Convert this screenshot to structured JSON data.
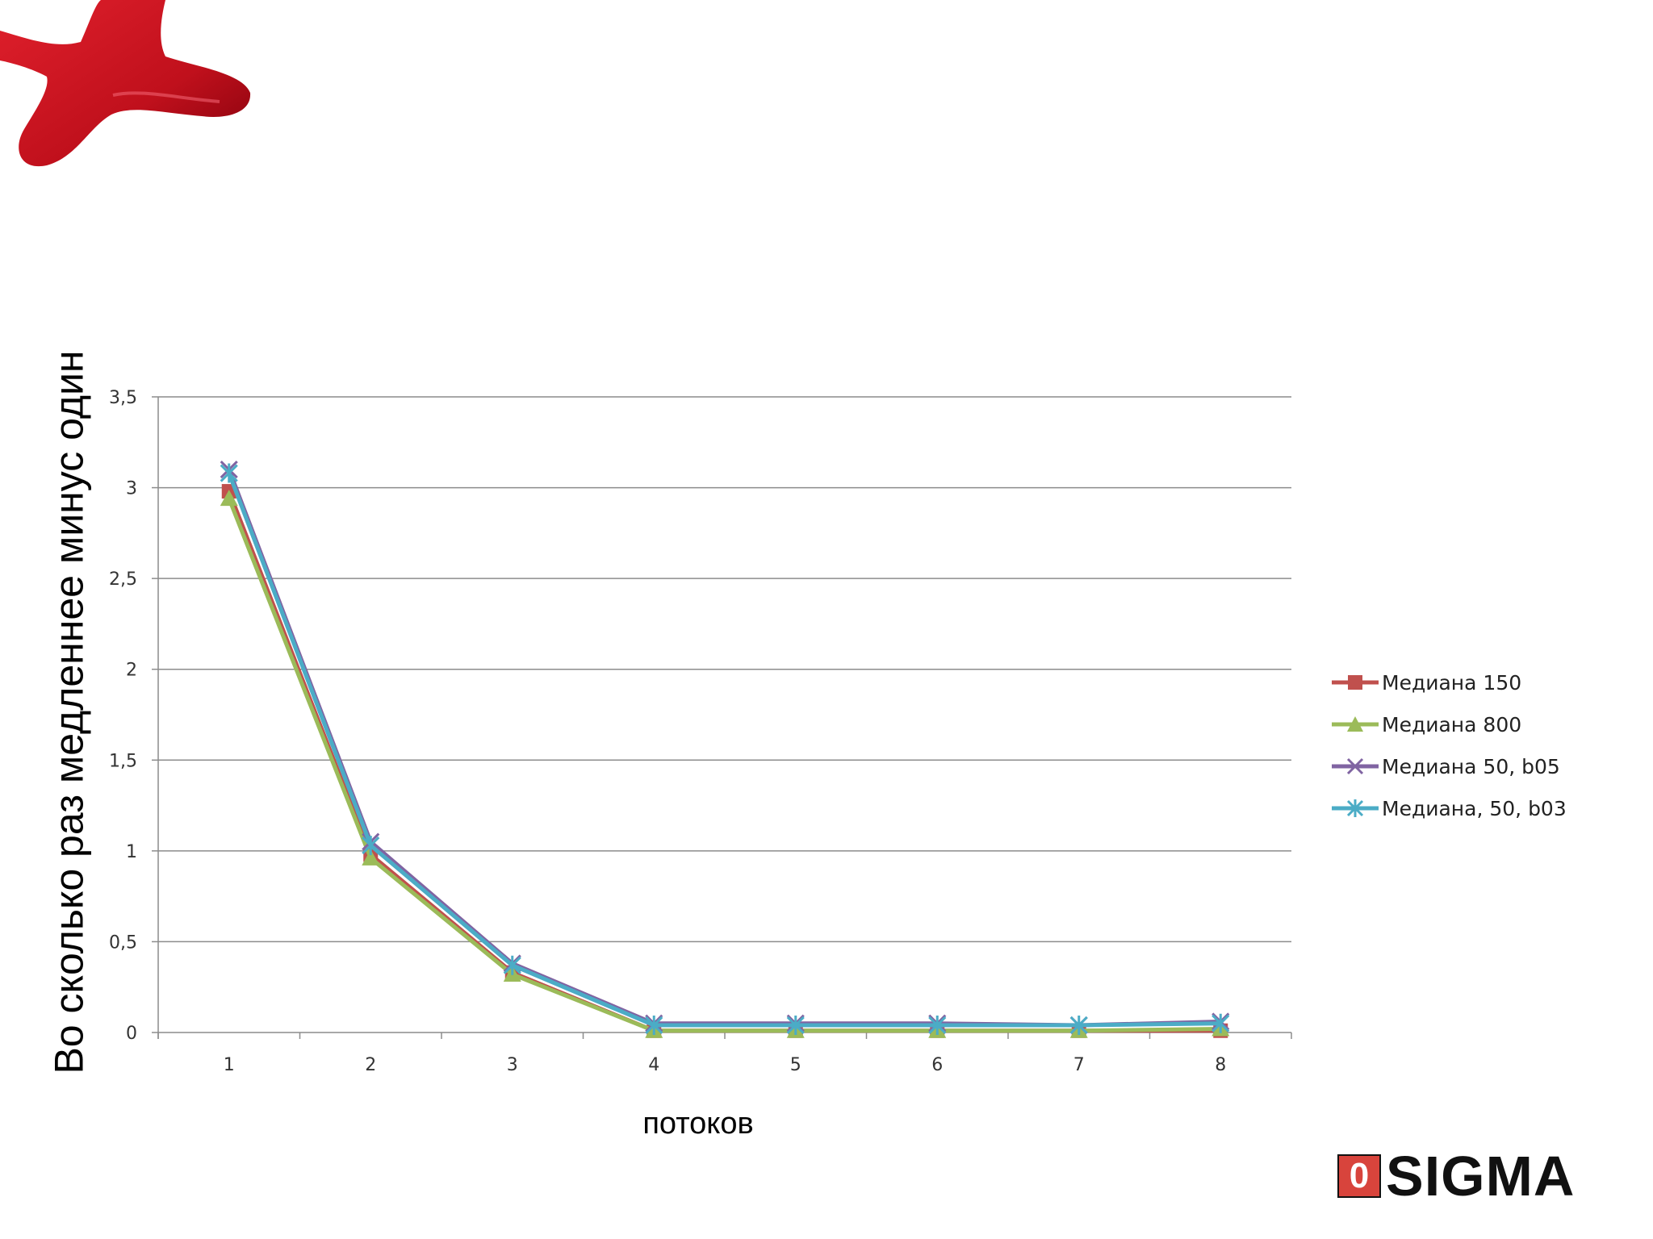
{
  "chart_data": {
    "type": "line",
    "x": [
      1,
      2,
      3,
      4,
      5,
      6,
      7,
      8
    ],
    "categories": [
      "1",
      "2",
      "3",
      "4",
      "5",
      "6",
      "7",
      "8"
    ],
    "series": [
      {
        "name": "Медиана 150",
        "color": "#c0504d",
        "marker": "square",
        "values": [
          2.98,
          0.98,
          0.33,
          0.01,
          0.01,
          0.01,
          0.01,
          0.01
        ]
      },
      {
        "name": "Медиана 800",
        "color": "#9bbb59",
        "marker": "triangle",
        "values": [
          2.94,
          0.96,
          0.32,
          0.01,
          0.01,
          0.01,
          0.01,
          0.02
        ]
      },
      {
        "name": "Медиана 50, b05",
        "color": "#8064a2",
        "marker": "x",
        "values": [
          3.1,
          1.05,
          0.38,
          0.05,
          0.05,
          0.05,
          0.04,
          0.06
        ]
      },
      {
        "name": "Медиана, 50, b03",
        "color": "#4bacc6",
        "marker": "star",
        "values": [
          3.08,
          1.03,
          0.37,
          0.04,
          0.04,
          0.04,
          0.04,
          0.05
        ]
      }
    ],
    "yticks": [
      "0",
      "0,5",
      "1",
      "1,5",
      "2",
      "2,5",
      "3",
      "3,5"
    ],
    "ylim": [
      0,
      3.5
    ],
    "xlabel": "потоков",
    "ylabel": "Во сколько раз медленнее минус один",
    "title": "",
    "grid": true,
    "legend_position": "right"
  },
  "logo": {
    "mark": "0",
    "text": "SIGMA"
  },
  "decoration": {
    "shape": "red-star-blob",
    "color": "#c0101c"
  }
}
